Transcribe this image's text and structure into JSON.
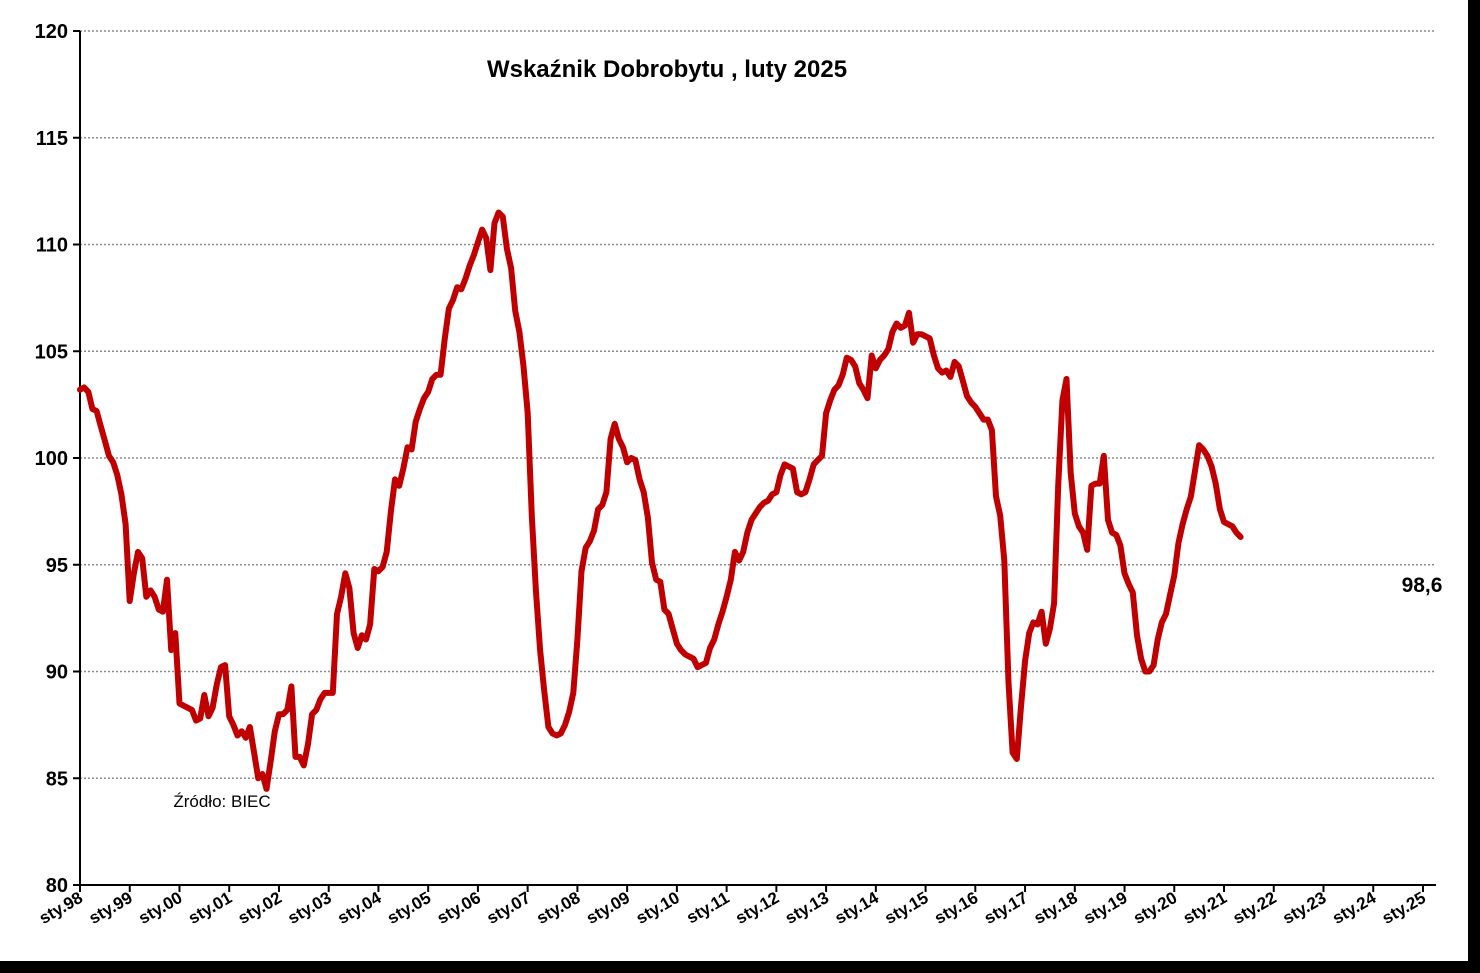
{
  "chart_data": {
    "type": "line",
    "title": "Wskaźnik Dobrobytu , luty 2025",
    "source_note": "Źródło: BIEC",
    "last_value_label": "98,6",
    "xlabel": "",
    "ylabel": "",
    "ylim": [
      80,
      120
    ],
    "y_ticks": [
      80,
      85,
      90,
      95,
      100,
      105,
      110,
      115,
      120
    ],
    "x_range": [
      0,
      325
    ],
    "x_tick_months": [
      0,
      12,
      24,
      36,
      48,
      60,
      72,
      84,
      96,
      108,
      120,
      132,
      144,
      156,
      168,
      180,
      192,
      204,
      216,
      228,
      240,
      252,
      264,
      276,
      288,
      300,
      312,
      324
    ],
    "x_tick_labels": [
      "sty.98",
      "sty.99",
      "sty.00",
      "sty.01",
      "sty.02",
      "sty.03",
      "sty.04",
      "sty.05",
      "sty.06",
      "sty.07",
      "sty.08",
      "sty.09",
      "sty.10",
      "sty.11",
      "sty.12",
      "sty.13",
      "sty.14",
      "sty.15",
      "sty.16",
      "sty.17",
      "sty.18",
      "sty.19",
      "sty.20",
      "sty.21",
      "sty.22",
      "sty.23",
      "sty.24",
      "sty.25"
    ],
    "grid": true,
    "legend": "none",
    "line_color": "#c00000",
    "series": [
      {
        "points": [
          [
            0,
            103.2
          ],
          [
            1,
            103.3
          ],
          [
            2,
            103.1
          ],
          [
            3,
            102.3
          ],
          [
            4,
            102.2
          ],
          [
            5,
            101.5
          ],
          [
            6,
            100.8
          ],
          [
            7,
            100.1
          ],
          [
            8,
            99.8
          ],
          [
            9,
            99.2
          ],
          [
            10,
            98.3
          ],
          [
            11,
            96.9
          ],
          [
            12,
            93.3
          ],
          [
            13,
            94.6
          ],
          [
            14,
            95.6
          ],
          [
            15,
            95.3
          ],
          [
            16,
            93.5
          ],
          [
            17,
            93.8
          ],
          [
            18,
            93.5
          ],
          [
            19,
            92.9
          ],
          [
            20,
            92.8
          ],
          [
            21,
            94.3
          ],
          [
            22,
            91.0
          ],
          [
            23,
            91.8
          ],
          [
            24,
            88.5
          ],
          [
            25,
            88.4
          ],
          [
            26,
            88.3
          ],
          [
            27,
            88.2
          ],
          [
            28,
            87.7
          ],
          [
            29,
            87.8
          ],
          [
            30,
            88.9
          ],
          [
            31,
            87.9
          ],
          [
            32,
            88.3
          ],
          [
            33,
            89.4
          ],
          [
            34,
            90.2
          ],
          [
            35,
            90.3
          ],
          [
            36,
            87.9
          ],
          [
            37,
            87.5
          ],
          [
            38,
            87.0
          ],
          [
            39,
            87.2
          ],
          [
            40,
            86.9
          ],
          [
            41,
            87.4
          ],
          [
            42,
            86.2
          ],
          [
            43,
            85.0
          ],
          [
            44,
            85.2
          ],
          [
            45,
            84.5
          ],
          [
            46,
            85.8
          ],
          [
            47,
            87.2
          ],
          [
            48,
            88.0
          ],
          [
            49,
            88.0
          ],
          [
            50,
            88.2
          ],
          [
            51,
            89.3
          ],
          [
            52,
            86.0
          ],
          [
            53,
            86.0
          ],
          [
            54,
            85.6
          ],
          [
            55,
            86.6
          ],
          [
            56,
            88.0
          ],
          [
            57,
            88.2
          ],
          [
            58,
            88.7
          ],
          [
            59,
            89.0
          ],
          [
            60,
            89.0
          ],
          [
            61,
            89.0
          ],
          [
            62,
            92.7
          ],
          [
            63,
            93.5
          ],
          [
            64,
            94.6
          ],
          [
            65,
            93.9
          ],
          [
            66,
            91.8
          ],
          [
            67,
            91.1
          ],
          [
            68,
            91.7
          ],
          [
            69,
            91.5
          ],
          [
            70,
            92.2
          ],
          [
            71,
            94.8
          ],
          [
            72,
            94.7
          ],
          [
            73,
            94.9
          ],
          [
            74,
            95.6
          ],
          [
            75,
            97.5
          ],
          [
            76,
            99.0
          ],
          [
            77,
            98.7
          ],
          [
            78,
            99.5
          ],
          [
            79,
            100.5
          ],
          [
            80,
            100.4
          ],
          [
            81,
            101.7
          ],
          [
            82,
            102.3
          ],
          [
            83,
            102.8
          ],
          [
            84,
            103.1
          ],
          [
            85,
            103.7
          ],
          [
            86,
            103.9
          ],
          [
            87,
            103.9
          ],
          [
            88,
            105.6
          ],
          [
            89,
            107.0
          ],
          [
            90,
            107.4
          ],
          [
            91,
            108.0
          ],
          [
            92,
            107.9
          ],
          [
            93,
            108.4
          ],
          [
            94,
            109.0
          ],
          [
            95,
            109.5
          ],
          [
            96,
            110.1
          ],
          [
            97,
            110.7
          ],
          [
            98,
            110.3
          ],
          [
            99,
            108.8
          ],
          [
            100,
            111.0
          ],
          [
            101,
            111.5
          ],
          [
            102,
            111.3
          ],
          [
            103,
            109.8
          ],
          [
            104,
            108.9
          ],
          [
            105,
            106.9
          ],
          [
            106,
            105.9
          ],
          [
            107,
            104.3
          ],
          [
            108,
            102.1
          ],
          [
            109,
            97.3
          ],
          [
            110,
            93.8
          ],
          [
            111,
            91.0
          ],
          [
            112,
            89.1
          ],
          [
            113,
            87.4
          ],
          [
            114,
            87.1
          ],
          [
            115,
            87.0
          ],
          [
            116,
            87.1
          ],
          [
            117,
            87.5
          ],
          [
            118,
            88.1
          ],
          [
            119,
            89.0
          ],
          [
            120,
            91.5
          ],
          [
            121,
            94.7
          ],
          [
            122,
            95.8
          ],
          [
            123,
            96.1
          ],
          [
            124,
            96.6
          ],
          [
            125,
            97.6
          ],
          [
            126,
            97.8
          ],
          [
            127,
            98.4
          ],
          [
            128,
            100.9
          ],
          [
            129,
            101.6
          ],
          [
            130,
            100.9
          ],
          [
            131,
            100.5
          ],
          [
            132,
            99.8
          ],
          [
            133,
            100.0
          ],
          [
            134,
            99.9
          ],
          [
            135,
            99.0
          ],
          [
            136,
            98.4
          ],
          [
            137,
            97.2
          ],
          [
            138,
            95.1
          ],
          [
            139,
            94.3
          ],
          [
            140,
            94.2
          ],
          [
            141,
            92.9
          ],
          [
            142,
            92.7
          ],
          [
            143,
            92.0
          ],
          [
            144,
            91.3
          ],
          [
            145,
            91.0
          ],
          [
            146,
            90.8
          ],
          [
            147,
            90.7
          ],
          [
            148,
            90.6
          ],
          [
            149,
            90.2
          ],
          [
            150,
            90.3
          ],
          [
            151,
            90.4
          ],
          [
            152,
            91.1
          ],
          [
            153,
            91.5
          ],
          [
            154,
            92.2
          ],
          [
            155,
            92.8
          ],
          [
            156,
            93.5
          ],
          [
            157,
            94.3
          ],
          [
            158,
            95.6
          ],
          [
            159,
            95.2
          ],
          [
            160,
            95.6
          ],
          [
            161,
            96.5
          ],
          [
            162,
            97.1
          ],
          [
            163,
            97.4
          ],
          [
            164,
            97.7
          ],
          [
            165,
            97.9
          ],
          [
            166,
            98.0
          ],
          [
            167,
            98.3
          ],
          [
            168,
            98.4
          ],
          [
            169,
            99.2
          ],
          [
            170,
            99.7
          ],
          [
            171,
            99.6
          ],
          [
            172,
            99.5
          ],
          [
            173,
            98.4
          ],
          [
            174,
            98.3
          ],
          [
            175,
            98.4
          ],
          [
            176,
            99.0
          ],
          [
            177,
            99.7
          ],
          [
            178,
            99.9
          ],
          [
            179,
            100.1
          ],
          [
            180,
            102.1
          ],
          [
            181,
            102.7
          ],
          [
            182,
            103.2
          ],
          [
            183,
            103.4
          ],
          [
            184,
            103.9
          ],
          [
            185,
            104.7
          ],
          [
            186,
            104.6
          ],
          [
            187,
            104.3
          ],
          [
            188,
            103.5
          ],
          [
            189,
            103.2
          ],
          [
            190,
            102.8
          ],
          [
            191,
            104.8
          ],
          [
            192,
            104.2
          ],
          [
            193,
            104.6
          ],
          [
            194,
            104.8
          ],
          [
            195,
            105.1
          ],
          [
            196,
            105.9
          ],
          [
            197,
            106.3
          ],
          [
            198,
            106.1
          ],
          [
            199,
            106.2
          ],
          [
            200,
            106.8
          ],
          [
            201,
            105.4
          ],
          [
            202,
            105.8
          ],
          [
            203,
            105.8
          ],
          [
            204,
            105.7
          ],
          [
            205,
            105.6
          ],
          [
            206,
            104.8
          ],
          [
            207,
            104.2
          ],
          [
            208,
            104.0
          ],
          [
            209,
            104.1
          ],
          [
            210,
            103.8
          ],
          [
            211,
            104.5
          ],
          [
            212,
            104.3
          ],
          [
            213,
            103.6
          ],
          [
            214,
            102.9
          ],
          [
            215,
            102.6
          ],
          [
            216,
            102.4
          ],
          [
            217,
            102.1
          ],
          [
            218,
            101.8
          ],
          [
            219,
            101.8
          ],
          [
            220,
            101.3
          ],
          [
            221,
            98.2
          ],
          [
            222,
            97.3
          ],
          [
            223,
            95.2
          ],
          [
            224,
            89.5
          ],
          [
            225,
            86.2
          ],
          [
            226,
            85.9
          ],
          [
            227,
            88.3
          ],
          [
            228,
            90.5
          ],
          [
            229,
            91.8
          ],
          [
            230,
            92.3
          ],
          [
            231,
            92.2
          ],
          [
            232,
            92.8
          ],
          [
            233,
            91.3
          ],
          [
            234,
            92.0
          ],
          [
            235,
            93.2
          ],
          [
            236,
            98.7
          ],
          [
            237,
            102.7
          ],
          [
            238,
            103.7
          ],
          [
            239,
            99.3
          ],
          [
            240,
            97.4
          ],
          [
            241,
            96.8
          ],
          [
            242,
            96.5
          ],
          [
            243,
            95.7
          ],
          [
            244,
            98.7
          ],
          [
            245,
            98.8
          ],
          [
            246,
            98.8
          ],
          [
            247,
            100.1
          ],
          [
            248,
            97.1
          ],
          [
            249,
            96.5
          ],
          [
            250,
            96.4
          ],
          [
            251,
            95.9
          ],
          [
            252,
            94.6
          ],
          [
            253,
            94.1
          ],
          [
            254,
            93.7
          ],
          [
            255,
            91.7
          ],
          [
            256,
            90.6
          ],
          [
            257,
            90.0
          ],
          [
            258,
            90.0
          ],
          [
            259,
            90.3
          ],
          [
            260,
            91.5
          ],
          [
            261,
            92.3
          ],
          [
            262,
            92.7
          ],
          [
            263,
            93.6
          ],
          [
            264,
            94.5
          ],
          [
            265,
            96.0
          ],
          [
            266,
            96.9
          ],
          [
            267,
            97.6
          ],
          [
            268,
            98.2
          ],
          [
            269,
            99.4
          ],
          [
            270,
            100.6
          ],
          [
            271,
            100.4
          ],
          [
            272,
            100.1
          ],
          [
            273,
            99.6
          ],
          [
            274,
            98.8
          ],
          [
            275,
            97.6
          ],
          [
            276,
            97.0
          ],
          [
            277,
            96.9
          ],
          [
            278,
            96.8
          ],
          [
            279,
            96.5
          ],
          [
            280,
            96.3
          ]
        ]
      }
    ]
  }
}
